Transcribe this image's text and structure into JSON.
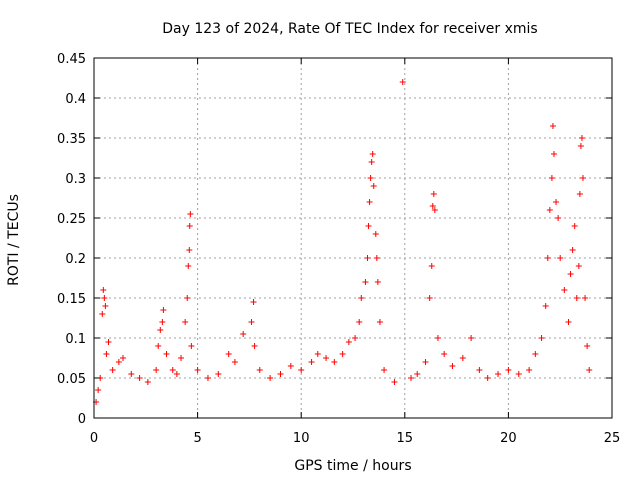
{
  "chart_data": {
    "type": "scatter",
    "title": "Day 123 of 2024, Rate Of TEC Index for receiver xmis",
    "xlabel": "GPS time / hours",
    "ylabel": "ROTI / TECUs",
    "xlim": [
      0,
      25
    ],
    "ylim": [
      0,
      0.45
    ],
    "xticks": [
      0,
      5,
      10,
      15,
      20,
      25
    ],
    "yticks": [
      0,
      0.05,
      0.1,
      0.15,
      0.2,
      0.25,
      0.3,
      0.35,
      0.4,
      0.45
    ],
    "grid": true,
    "marker": "plus",
    "color": "#ff0000",
    "series": [
      {
        "points": [
          [
            0.1,
            0.02
          ],
          [
            0.2,
            0.035
          ],
          [
            0.3,
            0.05
          ],
          [
            0.4,
            0.13
          ],
          [
            0.45,
            0.16
          ],
          [
            0.5,
            0.15
          ],
          [
            0.55,
            0.14
          ],
          [
            0.6,
            0.08
          ],
          [
            0.7,
            0.095
          ],
          [
            0.9,
            0.06
          ],
          [
            1.2,
            0.07
          ],
          [
            1.4,
            0.075
          ],
          [
            1.8,
            0.055
          ],
          [
            2.2,
            0.05
          ],
          [
            2.6,
            0.045
          ],
          [
            3.0,
            0.06
          ],
          [
            3.1,
            0.09
          ],
          [
            3.2,
            0.11
          ],
          [
            3.3,
            0.12
          ],
          [
            3.35,
            0.135
          ],
          [
            3.5,
            0.08
          ],
          [
            3.8,
            0.06
          ],
          [
            4.0,
            0.055
          ],
          [
            4.2,
            0.075
          ],
          [
            4.4,
            0.12
          ],
          [
            4.5,
            0.15
          ],
          [
            4.55,
            0.19
          ],
          [
            4.6,
            0.21
          ],
          [
            4.62,
            0.24
          ],
          [
            4.65,
            0.255
          ],
          [
            4.7,
            0.09
          ],
          [
            5.0,
            0.06
          ],
          [
            5.5,
            0.05
          ],
          [
            6.0,
            0.055
          ],
          [
            6.5,
            0.08
          ],
          [
            6.8,
            0.07
          ],
          [
            7.2,
            0.105
          ],
          [
            7.6,
            0.12
          ],
          [
            7.7,
            0.145
          ],
          [
            7.75,
            0.09
          ],
          [
            8.0,
            0.06
          ],
          [
            8.5,
            0.05
          ],
          [
            9.0,
            0.055
          ],
          [
            9.5,
            0.065
          ],
          [
            10.0,
            0.06
          ],
          [
            10.5,
            0.07
          ],
          [
            10.8,
            0.08
          ],
          [
            11.2,
            0.075
          ],
          [
            11.6,
            0.07
          ],
          [
            12.0,
            0.08
          ],
          [
            12.3,
            0.095
          ],
          [
            12.6,
            0.1
          ],
          [
            12.8,
            0.12
          ],
          [
            12.9,
            0.15
          ],
          [
            13.1,
            0.17
          ],
          [
            13.2,
            0.2
          ],
          [
            13.25,
            0.24
          ],
          [
            13.3,
            0.27
          ],
          [
            13.35,
            0.3
          ],
          [
            13.4,
            0.32
          ],
          [
            13.45,
            0.33
          ],
          [
            13.5,
            0.29
          ],
          [
            13.6,
            0.23
          ],
          [
            13.65,
            0.2
          ],
          [
            13.7,
            0.17
          ],
          [
            13.8,
            0.12
          ],
          [
            14.0,
            0.06
          ],
          [
            14.5,
            0.045
          ],
          [
            14.9,
            0.42
          ],
          [
            15.3,
            0.05
          ],
          [
            15.6,
            0.055
          ],
          [
            16.0,
            0.07
          ],
          [
            16.2,
            0.15
          ],
          [
            16.3,
            0.19
          ],
          [
            16.35,
            0.265
          ],
          [
            16.4,
            0.28
          ],
          [
            16.45,
            0.26
          ],
          [
            16.6,
            0.1
          ],
          [
            16.9,
            0.08
          ],
          [
            17.3,
            0.065
          ],
          [
            17.8,
            0.075
          ],
          [
            18.2,
            0.1
          ],
          [
            18.6,
            0.06
          ],
          [
            19.0,
            0.05
          ],
          [
            19.5,
            0.055
          ],
          [
            20.0,
            0.06
          ],
          [
            20.5,
            0.055
          ],
          [
            21.0,
            0.06
          ],
          [
            21.3,
            0.08
          ],
          [
            21.6,
            0.1
          ],
          [
            21.8,
            0.14
          ],
          [
            21.9,
            0.2
          ],
          [
            22.0,
            0.26
          ],
          [
            22.1,
            0.3
          ],
          [
            22.15,
            0.365
          ],
          [
            22.2,
            0.33
          ],
          [
            22.3,
            0.27
          ],
          [
            22.4,
            0.25
          ],
          [
            22.5,
            0.2
          ],
          [
            22.7,
            0.16
          ],
          [
            22.9,
            0.12
          ],
          [
            23.0,
            0.18
          ],
          [
            23.1,
            0.21
          ],
          [
            23.2,
            0.24
          ],
          [
            23.3,
            0.15
          ],
          [
            23.4,
            0.19
          ],
          [
            23.45,
            0.28
          ],
          [
            23.5,
            0.34
          ],
          [
            23.55,
            0.35
          ],
          [
            23.6,
            0.3
          ],
          [
            23.7,
            0.15
          ],
          [
            23.8,
            0.09
          ],
          [
            23.9,
            0.06
          ]
        ]
      }
    ]
  }
}
